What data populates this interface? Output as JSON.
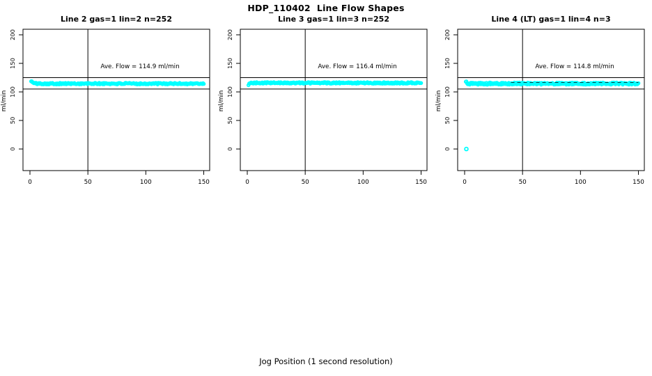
{
  "figure": {
    "title": "HDP_110402  Line Flow Shapes",
    "xlabel": "Jog Position (1 second resolution)",
    "background_color": "#ffffff",
    "point_color": "#00ffff",
    "axis_color": "#000000"
  },
  "chart_data": [
    {
      "type": "scatter",
      "title": "Line 2 gas=1 lin=2 n=252",
      "ylabel": "ml/min",
      "annotation": "Ave. Flow =  114.9  ml/min",
      "ave_flow": 114.9,
      "n": 252,
      "x_ticks": [
        0,
        50,
        100,
        150
      ],
      "y_ticks": [
        0,
        50,
        100,
        150,
        200
      ],
      "xlim": [
        0,
        150
      ],
      "ylim": [
        0,
        200
      ],
      "x_range": [
        1,
        150
      ],
      "y_flat": 114.5,
      "y_start": 119.5,
      "band_halfwidth": 1.3,
      "points_drawn": 252,
      "ref_h_lines": [
        125,
        105
      ],
      "ref_v_line": 50,
      "outliers": [],
      "overlay_line": null
    },
    {
      "type": "scatter",
      "title": "Line 3 gas=1 lin=3 n=252",
      "ylabel": "ml/min",
      "annotation": "Ave. Flow =  116.4  ml/min",
      "ave_flow": 116.4,
      "n": 252,
      "x_ticks": [
        0,
        50,
        100,
        150
      ],
      "y_ticks": [
        0,
        50,
        100,
        150,
        200
      ],
      "xlim": [
        0,
        150
      ],
      "ylim": [
        0,
        200
      ],
      "x_range": [
        1,
        150
      ],
      "y_flat": 115.8,
      "y_start": 112.8,
      "band_halfwidth": 1.3,
      "points_drawn": 252,
      "ref_h_lines": [
        125,
        105
      ],
      "ref_v_line": 50,
      "outliers": [],
      "overlay_line": null
    },
    {
      "type": "scatter",
      "title": "Line 4 (LT) gas=1 lin=4 n=3",
      "ylabel": "ml/min",
      "annotation": "Ave. Flow =  114.8  ml/min",
      "ave_flow": 114.8,
      "n": 3,
      "x_ticks": [
        0,
        50,
        100,
        150
      ],
      "y_ticks": [
        0,
        50,
        100,
        150,
        200
      ],
      "xlim": [
        0,
        150
      ],
      "ylim": [
        0,
        200
      ],
      "x_range": [
        1,
        150
      ],
      "y_flat": 114.6,
      "y_start": 117.5,
      "band_halfwidth": 1.8,
      "points_drawn": 310,
      "ref_h_lines": [
        125,
        105
      ],
      "ref_v_line": 50,
      "outliers": [
        [
          1.5,
          0
        ]
      ],
      "overlay_line": {
        "y": 116.6,
        "x0": 40,
        "x1": 150,
        "style": "dashed"
      }
    }
  ]
}
